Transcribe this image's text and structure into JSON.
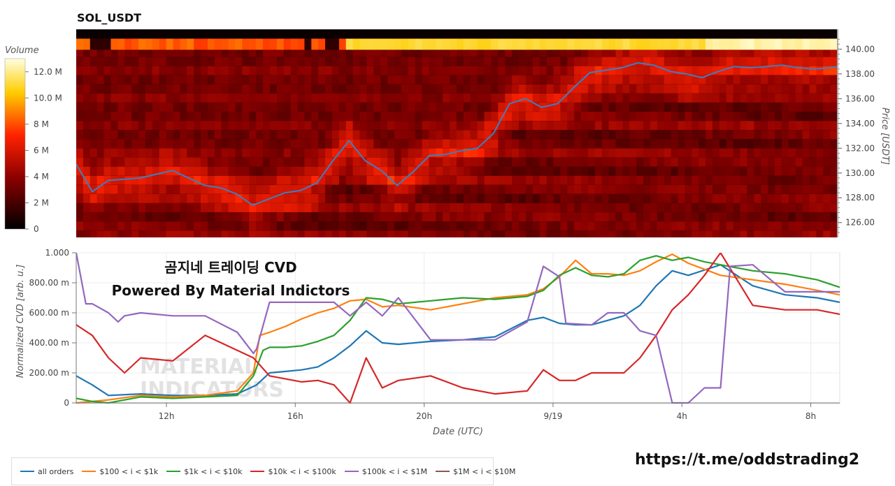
{
  "title": "SOL_USDT",
  "overlay_line1": "곰지네 트레이딩 CVD",
  "overlay_line2": "Powered By Material Indictors",
  "watermark_line1": "MATERIAL",
  "watermark_line2": "INDICATORS",
  "footer_url": "https://t.me/oddstrading2",
  "colors": {
    "all_orders": "#1f77b4",
    "b100_1k": "#ff7f0e",
    "b1k_10k": "#2ca02c",
    "b10k_100k": "#d62728",
    "b100k_1m": "#9467bd",
    "b1m_10m": "#8c564b",
    "price_line": "#3a7fc4"
  },
  "chart_data": [
    {
      "type": "heatmap",
      "title": "SOL_USDT",
      "colorbar_label": "Volume",
      "colorbar_ticks": [
        "12.0 M",
        "10.0 M",
        "8 M",
        "6 M",
        "4 M",
        "2 M",
        "0"
      ],
      "colorbar_values": [
        12,
        10,
        8,
        6,
        4,
        2,
        0
      ],
      "colorbar_range": [
        0,
        13
      ],
      "ylabel": "Price [USDT]",
      "y_ticks": [
        "140.00",
        "138.00",
        "136.00",
        "134.00",
        "132.00",
        "130.00",
        "128.00",
        "126.00"
      ],
      "y_tick_values": [
        140,
        138,
        136,
        134,
        132,
        130,
        128,
        126
      ],
      "ylim": [
        124.8,
        141.6
      ],
      "xlim": [
        0,
        23.7
      ],
      "price_series": {
        "name": "",
        "x": [
          0,
          0.5,
          1,
          1.5,
          2,
          2.5,
          3,
          3.5,
          4,
          4.5,
          5,
          5.5,
          6,
          6.5,
          7,
          7.5,
          8,
          8.5,
          9,
          9.5,
          10,
          10.5,
          11,
          11.5,
          12,
          12.5,
          13,
          13.5,
          14,
          14.5,
          15,
          15.5,
          16,
          16.5,
          17,
          17.5,
          18,
          18.5,
          19,
          19.5,
          20,
          20.5,
          21,
          21.5,
          22,
          22.5,
          23,
          23.5,
          23.7
        ],
        "y": [
          130.7,
          128.5,
          129.4,
          129.5,
          129.6,
          129.9,
          130.2,
          129.6,
          129.0,
          128.8,
          128.3,
          127.4,
          127.9,
          128.4,
          128.6,
          129.2,
          131.0,
          132.6,
          131.0,
          130.2,
          129.0,
          130.1,
          131.4,
          131.5,
          131.8,
          132.0,
          133.2,
          135.6,
          136.0,
          135.3,
          135.6,
          136.9,
          138.1,
          138.3,
          138.5,
          138.9,
          138.7,
          138.2,
          138.0,
          137.7,
          138.2,
          138.6,
          138.5,
          138.6,
          138.7,
          138.5,
          138.4,
          138.5,
          138.6
        ]
      }
    },
    {
      "type": "line",
      "xlabel": "Date (UTC)",
      "ylabel": "Normalized CVD [arb. u.]",
      "x_ticks": [
        "12h",
        "16h",
        "20h",
        "9/19",
        "4h",
        "8h"
      ],
      "x_tick_values": [
        2.8,
        6.8,
        10.8,
        14.8,
        18.8,
        22.8
      ],
      "y_ticks": [
        "1.000",
        "800.00 m",
        "600.00 m",
        "400.00 m",
        "200.00 m",
        "0"
      ],
      "y_tick_values": [
        1.0,
        0.8,
        0.6,
        0.4,
        0.2,
        0
      ],
      "xlim": [
        0,
        23.7
      ],
      "ylim": [
        0,
        1.0
      ],
      "grid": true,
      "legend_position": "bottom-left",
      "series": [
        {
          "name": "all orders",
          "color_key": "all_orders",
          "x": [
            0,
            0.5,
            1,
            2,
            3,
            4,
            5,
            5.6,
            6,
            6.5,
            7,
            7.5,
            8,
            8.5,
            9,
            9.5,
            10,
            11,
            12,
            13,
            14,
            14.5,
            15,
            15.5,
            16,
            16.5,
            17,
            17.5,
            18,
            18.5,
            19,
            20,
            21,
            22,
            23,
            23.7
          ],
          "y": [
            0.18,
            0.12,
            0.05,
            0.06,
            0.05,
            0.05,
            0.06,
            0.12,
            0.2,
            0.21,
            0.22,
            0.24,
            0.3,
            0.38,
            0.48,
            0.4,
            0.39,
            0.41,
            0.42,
            0.44,
            0.55,
            0.57,
            0.53,
            0.52,
            0.52,
            0.55,
            0.58,
            0.65,
            0.78,
            0.88,
            0.85,
            0.92,
            0.78,
            0.72,
            0.7,
            0.67
          ]
        },
        {
          "name": "$100 < i < $1k",
          "color_key": "b100_1k",
          "x": [
            0,
            0.5,
            1,
            2,
            3,
            4,
            5,
            5.5,
            5.7,
            6,
            6.5,
            7,
            7.5,
            8,
            8.5,
            9,
            9.5,
            10,
            11,
            12,
            13,
            14,
            14.5,
            15,
            15.5,
            16,
            16.5,
            17,
            17.5,
            18,
            18.5,
            19,
            20,
            21,
            22,
            23,
            23.7
          ],
          "y": [
            0.0,
            0.01,
            0.02,
            0.05,
            0.04,
            0.05,
            0.08,
            0.2,
            0.45,
            0.47,
            0.51,
            0.56,
            0.6,
            0.63,
            0.68,
            0.69,
            0.64,
            0.65,
            0.62,
            0.66,
            0.7,
            0.72,
            0.76,
            0.84,
            0.95,
            0.86,
            0.86,
            0.85,
            0.88,
            0.94,
            0.99,
            0.93,
            0.85,
            0.82,
            0.79,
            0.75,
            0.72
          ]
        },
        {
          "name": "$1k < i < $10k",
          "color_key": "b1k_10k",
          "x": [
            0,
            0.5,
            1,
            2,
            3,
            4,
            5,
            5.5,
            5.8,
            6,
            6.5,
            7,
            7.5,
            8,
            8.5,
            9,
            9.5,
            10,
            11,
            12,
            13,
            14,
            14.5,
            15,
            15.5,
            16,
            16.5,
            17,
            17.5,
            18,
            18.5,
            19,
            19.5,
            20,
            21,
            22,
            23,
            23.7
          ],
          "y": [
            0.03,
            0.01,
            0.0,
            0.04,
            0.03,
            0.04,
            0.05,
            0.18,
            0.35,
            0.37,
            0.37,
            0.38,
            0.41,
            0.45,
            0.55,
            0.7,
            0.69,
            0.66,
            0.68,
            0.7,
            0.69,
            0.71,
            0.75,
            0.85,
            0.9,
            0.85,
            0.84,
            0.86,
            0.95,
            0.98,
            0.95,
            0.97,
            0.94,
            0.92,
            0.88,
            0.86,
            0.82,
            0.77
          ]
        },
        {
          "name": "$10k < i < $100k",
          "color_key": "b10k_100k",
          "x": [
            0,
            0.5,
            1,
            1.5,
            2,
            3,
            4,
            5,
            5.5,
            6,
            7,
            7.5,
            8,
            8.5,
            9,
            9.5,
            10,
            11,
            12,
            13,
            14,
            14.5,
            15,
            15.5,
            16,
            17,
            17.5,
            18,
            18.5,
            19,
            19.5,
            20,
            21,
            22,
            23,
            23.7
          ],
          "y": [
            0.52,
            0.45,
            0.3,
            0.2,
            0.3,
            0.28,
            0.45,
            0.35,
            0.3,
            0.18,
            0.14,
            0.15,
            0.12,
            0.0,
            0.3,
            0.1,
            0.15,
            0.18,
            0.1,
            0.06,
            0.08,
            0.22,
            0.15,
            0.15,
            0.2,
            0.2,
            0.3,
            0.45,
            0.62,
            0.72,
            0.85,
            1.0,
            0.65,
            0.62,
            0.62,
            0.59
          ]
        },
        {
          "name": "$100k < i < $1M",
          "color_key": "b100k_1m",
          "x": [
            0,
            0.3,
            0.5,
            1,
            1.3,
            1.5,
            2,
            3,
            4,
            5,
            5.5,
            5.6,
            6,
            7,
            8,
            8.5,
            9,
            9.5,
            10,
            11,
            12,
            13,
            14,
            14.5,
            15,
            15.2,
            16,
            16.5,
            17,
            17.5,
            18,
            18.5,
            19,
            19.5,
            20,
            20.3,
            21,
            22,
            23,
            23.7
          ],
          "y": [
            1.0,
            0.66,
            0.66,
            0.6,
            0.54,
            0.58,
            0.6,
            0.58,
            0.58,
            0.47,
            0.33,
            0.36,
            0.67,
            0.67,
            0.67,
            0.58,
            0.67,
            0.58,
            0.7,
            0.42,
            0.42,
            0.42,
            0.54,
            0.91,
            0.84,
            0.53,
            0.52,
            0.6,
            0.6,
            0.48,
            0.45,
            0.0,
            0.0,
            0.1,
            0.1,
            0.91,
            0.92,
            0.74,
            0.74,
            0.74
          ]
        },
        {
          "name": "$1M < i < $10M",
          "color_key": "b1m_10m",
          "x": [],
          "y": []
        }
      ]
    }
  ]
}
